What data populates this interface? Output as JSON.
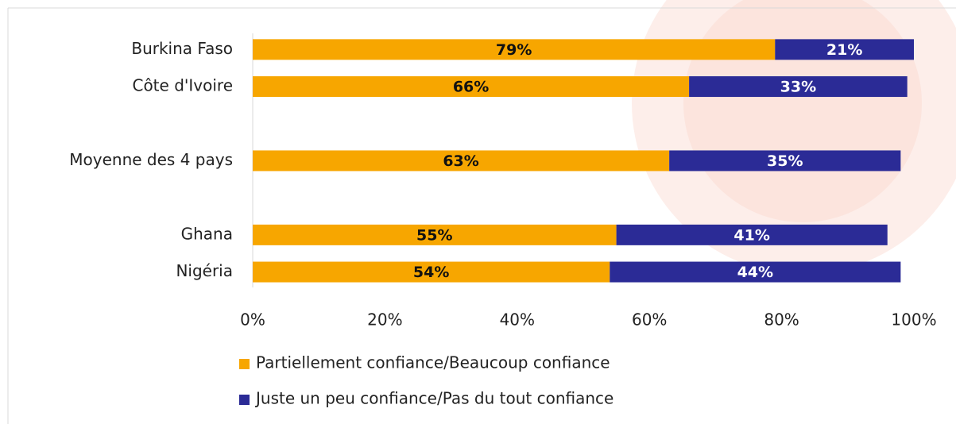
{
  "chart_data": {
    "type": "stacked-bar",
    "orientation": "horizontal",
    "categories": [
      "Burkina Faso",
      "Côte d'Ivoire",
      null,
      "Moyenne des 4 pays",
      null,
      "Ghana",
      "Nigéria"
    ],
    "series": [
      {
        "name": "Partiellement confiance/Beaucoup confiance",
        "color": "#F7A600",
        "label_color": "#111111",
        "values": [
          79,
          66,
          null,
          63,
          null,
          55,
          54
        ],
        "value_labels": [
          "79%",
          "66%",
          null,
          "63%",
          null,
          "55%",
          "54%"
        ]
      },
      {
        "name": "Juste un peu confiance/Pas du tout confiance",
        "color": "#2B2B96",
        "label_color": "#ffffff",
        "values": [
          21,
          33,
          null,
          35,
          null,
          41,
          44
        ],
        "value_labels": [
          "21%",
          "33%",
          null,
          "35%",
          null,
          "41%",
          "44%"
        ]
      }
    ],
    "xlim": [
      0,
      100
    ],
    "xticks": [
      {
        "value": 0,
        "label": "0%"
      },
      {
        "value": 20,
        "label": "20%"
      },
      {
        "value": 40,
        "label": "40%"
      },
      {
        "value": 60,
        "label": "60%"
      },
      {
        "value": 80,
        "label": "80%"
      },
      {
        "value": 100,
        "label": "100%"
      }
    ],
    "grid": false,
    "legend": "bottom"
  }
}
